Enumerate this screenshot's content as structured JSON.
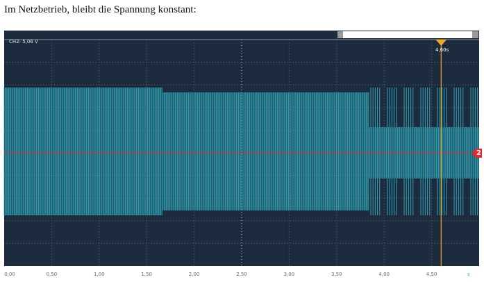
{
  "caption": "Im Netzbetrieb, bleibt die Spannung konstant:",
  "scope": {
    "channel_label": "CH2: 5,06 V",
    "cursor_label": "4,60s",
    "cursor_time_s": 4.6,
    "channel_marker": "2",
    "x_ticks": [
      "0,00",
      "0,50",
      "1,00",
      "1,50",
      "2,00",
      "2,50",
      "3,00",
      "3,50",
      "4,00",
      "4,50"
    ],
    "x_unit": "s",
    "time_range_s": [
      0,
      5
    ],
    "colors": {
      "background": "#1c2b3e",
      "trace": "#2fb3c4",
      "cursor": "#f0a824",
      "baseline": "#e8262a"
    }
  }
}
